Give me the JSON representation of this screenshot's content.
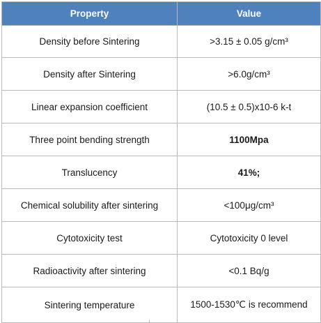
{
  "table": {
    "headers": {
      "property": "Property",
      "value": "Value"
    },
    "rows": [
      {
        "property": "Density before Sintering",
        "value": ">3.15 ±  0.05 g/cm³",
        "value_bold": false
      },
      {
        "property": "Density after Sintering",
        "value": ">6.0g/cm³",
        "value_bold": false
      },
      {
        "property": "Linear expansion coefficient",
        "value": "(10.5  ± 0.5)x10-6 k-t",
        "value_bold": false
      },
      {
        "property": "Three point bending strength",
        "value": "1100Mpa",
        "value_bold": true
      },
      {
        "property": "Translucency",
        "value": "41%;",
        "value_bold": true
      },
      {
        "property": "Chemical solubility after sintering",
        "value": "<100μg/cm³",
        "value_bold": false
      },
      {
        "property": "Cytotoxicity test",
        "value": "Cytotoxicity 0 level",
        "value_bold": false
      },
      {
        "property": "Radioactivity after sintering",
        "value": "<0.1  Bq/g",
        "value_bold": false
      },
      {
        "property": "Sintering temperature",
        "value": "1500-1530℃  is recommend",
        "value_bold": false
      }
    ]
  },
  "colors": {
    "header_bg": "#4f81bd",
    "header_text": "#ffffff",
    "border": "#b9b9b9"
  }
}
